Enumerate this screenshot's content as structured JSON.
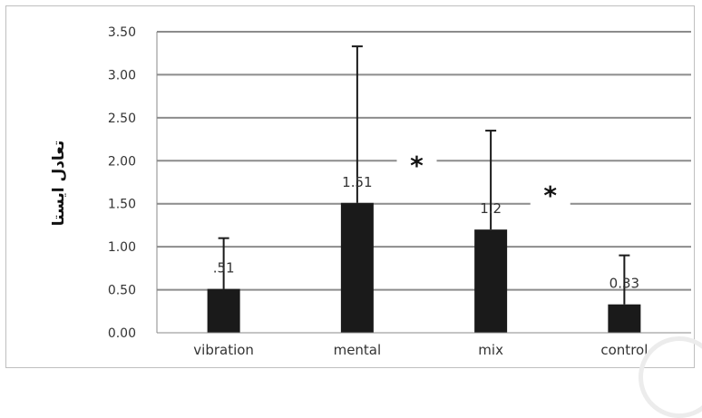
{
  "chart_data": {
    "type": "bar",
    "categories": [
      "vibration",
      "mental",
      "mix",
      "control"
    ],
    "values": [
      0.51,
      1.51,
      1.2,
      0.33
    ],
    "value_labels": [
      ".51",
      "1.51",
      "1.2",
      "0.33"
    ],
    "error_upper": [
      1.1,
      3.33,
      2.35,
      0.9
    ],
    "ylabel": "تعادل ایستا",
    "ylim": [
      0,
      3.5
    ],
    "yticks": [
      "0.00",
      "0.50",
      "1.00",
      "1.50",
      "2.00",
      "2.50",
      "3.00",
      "3.50"
    ],
    "grid": true,
    "bar_color": "#1a1a1a",
    "annotations": [
      {
        "text": "*",
        "between": [
          "mental",
          "mix"
        ],
        "y": 1.95
      },
      {
        "text": "*",
        "between": [
          "mix",
          "control"
        ],
        "y": 1.6
      }
    ]
  }
}
